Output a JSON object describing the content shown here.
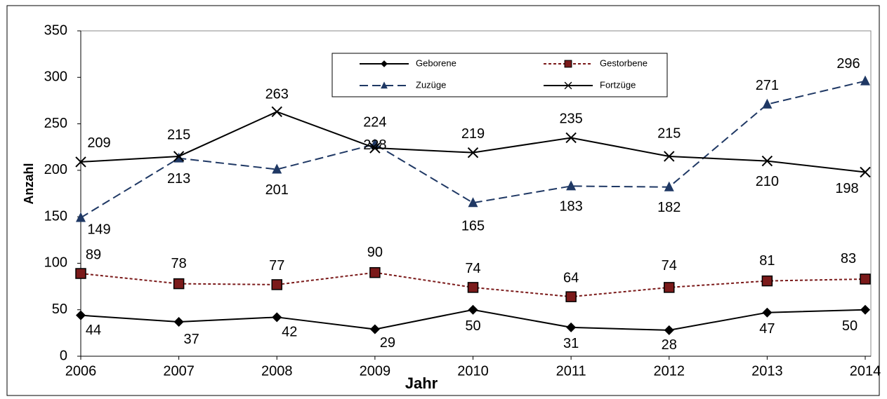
{
  "chart_data": {
    "type": "line",
    "x_label": "Jahr",
    "y_label": "Anzahl",
    "x": [
      2006,
      2007,
      2008,
      2009,
      2010,
      2011,
      2012,
      2013,
      2014
    ],
    "xlim": [
      2006,
      2014
    ],
    "xticks": [
      2006,
      2007,
      2008,
      2009,
      2010,
      2011,
      2012,
      2013,
      2014
    ],
    "ylim": [
      0,
      350
    ],
    "yticks": [
      0,
      50,
      100,
      150,
      200,
      250,
      300,
      350
    ],
    "series": [
      {
        "name": "Geborene",
        "color": "#000000",
        "marker": "diamond",
        "dash": "solid",
        "values": [
          44,
          37,
          42,
          29,
          50,
          31,
          28,
          47,
          50
        ]
      },
      {
        "name": "Gestorbene",
        "color": "#7b1a1a",
        "marker": "square",
        "dash": "dotted",
        "values": [
          89,
          78,
          77,
          90,
          74,
          64,
          74,
          81,
          83
        ]
      },
      {
        "name": "Zuzüge",
        "color": "#1f3864",
        "marker": "triangle",
        "dash": "dashed",
        "values": [
          149,
          213,
          201,
          228,
          165,
          183,
          182,
          271,
          296
        ]
      },
      {
        "name": "Fortzüge",
        "color": "#000000",
        "marker": "x",
        "dash": "solid",
        "values": [
          209,
          215,
          263,
          224,
          219,
          235,
          215,
          210,
          198
        ]
      }
    ]
  }
}
